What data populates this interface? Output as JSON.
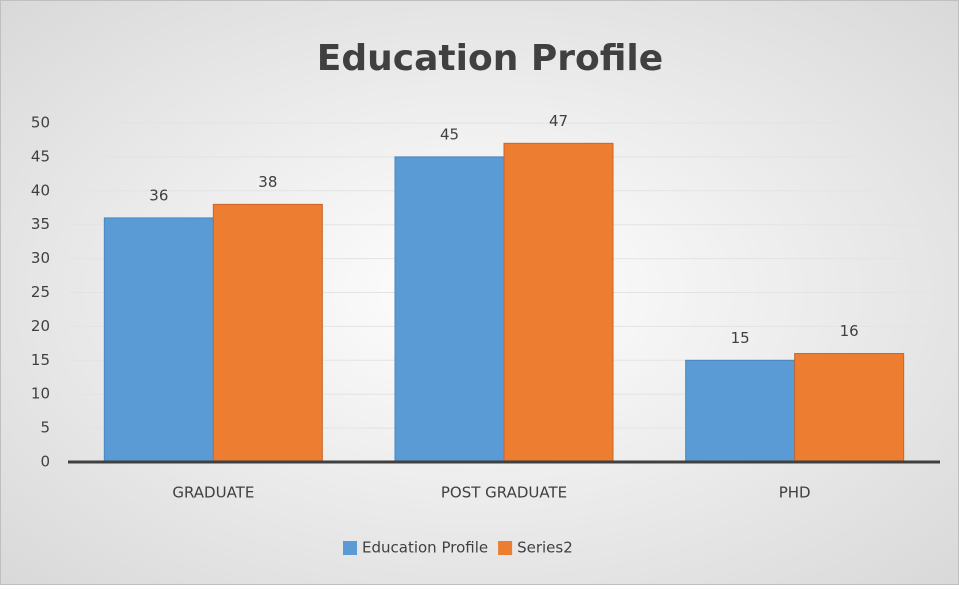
{
  "chart_data": {
    "type": "bar",
    "title": "Education Profile",
    "categories": [
      "GRADUATE",
      "POST GRADUATE",
      "PHD"
    ],
    "series": [
      {
        "name": "Education Profile",
        "color": "#5b9bd5",
        "values": [
          36,
          45,
          15
        ]
      },
      {
        "name": "Series2",
        "color": "#ed7d31",
        "values": [
          38,
          47,
          16
        ]
      }
    ],
    "ylim": [
      0,
      50
    ],
    "yticks": [
      0,
      5,
      10,
      15,
      20,
      25,
      30,
      35,
      40,
      45,
      50
    ],
    "grid": true,
    "legend": "bottom"
  }
}
